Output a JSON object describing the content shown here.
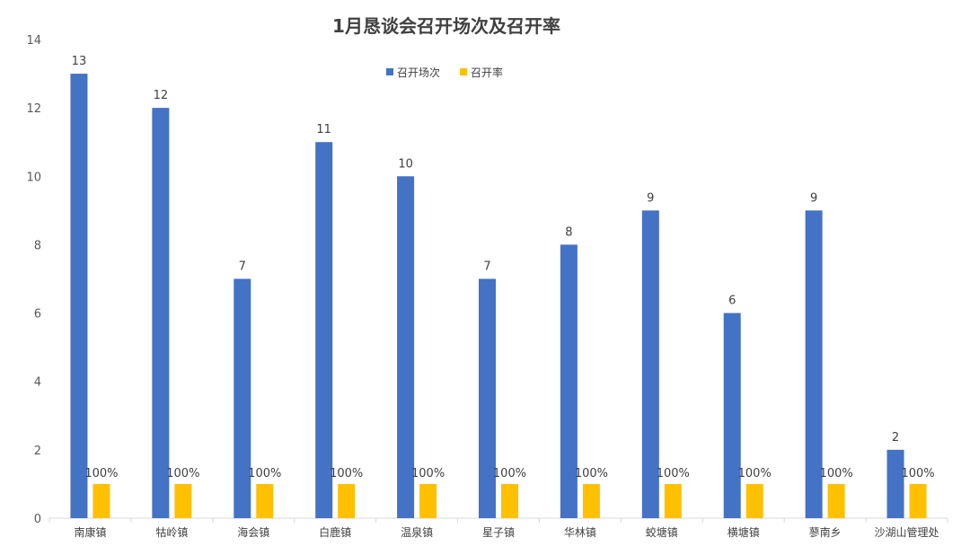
{
  "chart_data": {
    "type": "bar",
    "title": "1月恳谈会召开场次及召开率",
    "xlabel": "",
    "ylabel": "",
    "ylim": [
      0,
      14
    ],
    "yticks": [
      0,
      2,
      4,
      6,
      8,
      10,
      12,
      14
    ],
    "grid": false,
    "legend_position": "top-center",
    "categories": [
      "南康镇",
      "牯岭镇",
      "海会镇",
      "白鹿镇",
      "温泉镇",
      "星子镇",
      "华林镇",
      "蛟塘镇",
      "横塘镇",
      "蓼南乡",
      "沙湖山管理处"
    ],
    "series": [
      {
        "name": "召开场次",
        "color": "#4472C4",
        "values": [
          13,
          12,
          7,
          11,
          10,
          7,
          8,
          9,
          6,
          9,
          2
        ],
        "labels": [
          "13",
          "12",
          "7",
          "11",
          "10",
          "7",
          "8",
          "9",
          "6",
          "9",
          "2"
        ]
      },
      {
        "name": "召开率",
        "color": "#FFC000",
        "values": [
          1,
          1,
          1,
          1,
          1,
          1,
          1,
          1,
          1,
          1,
          1
        ],
        "labels": [
          "100%",
          "100%",
          "100%",
          "100%",
          "100%",
          "100%",
          "100%",
          "100%",
          "100%",
          "100%",
          "100%"
        ]
      }
    ]
  }
}
